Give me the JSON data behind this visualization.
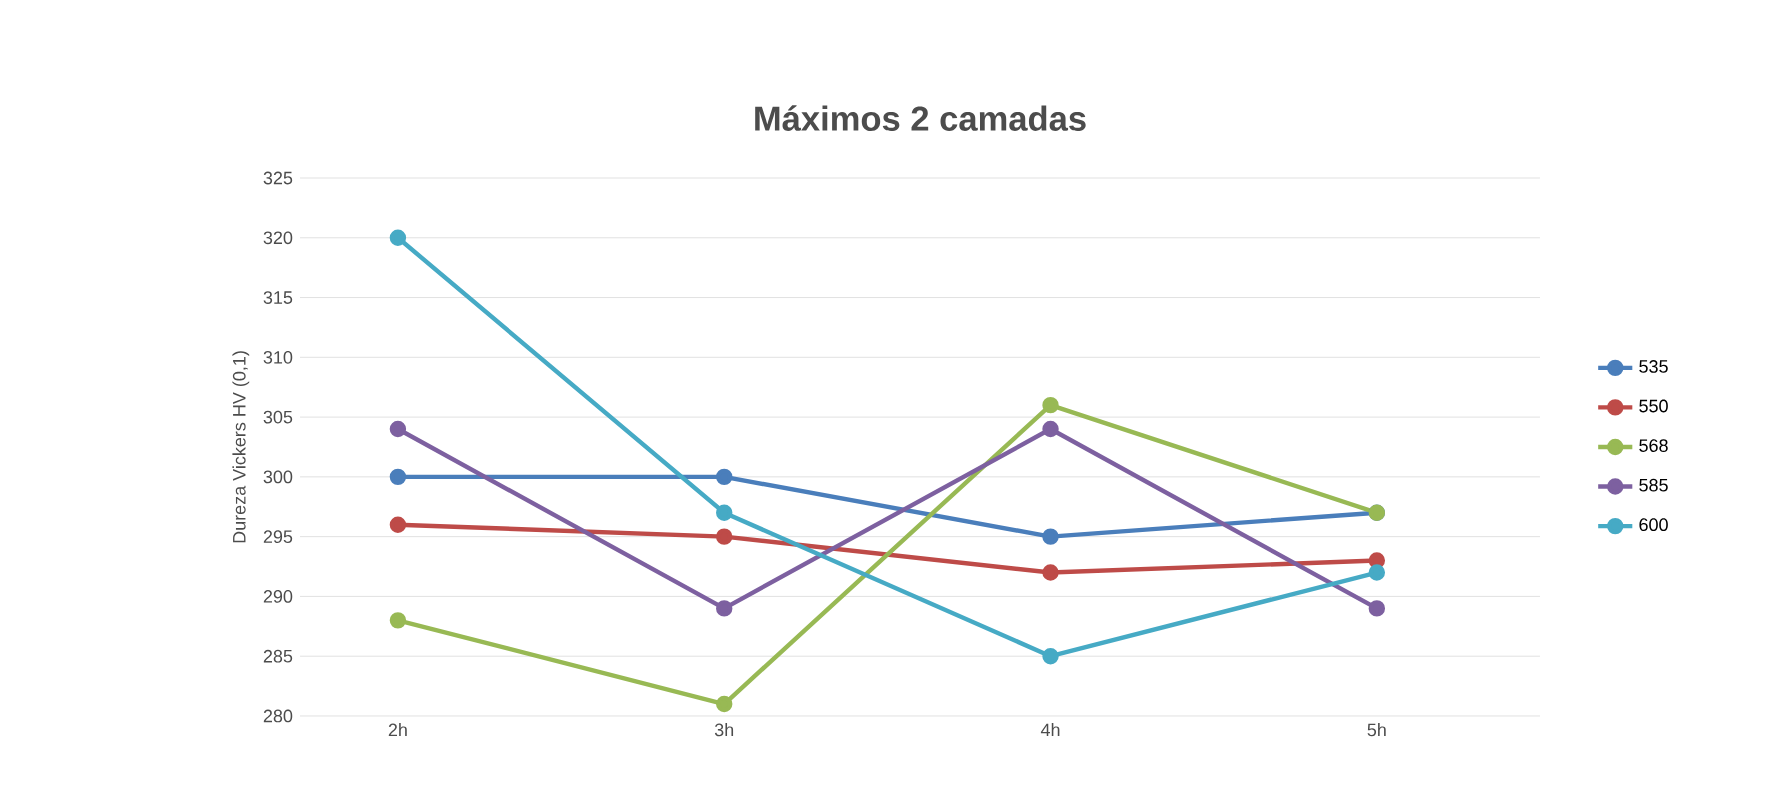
{
  "chart_data": {
    "type": "line",
    "title": "Máximos 2 camadas",
    "ylabel": "Dureza Vickers HV (0,1)",
    "categories": [
      "2h",
      "3h",
      "4h",
      "5h"
    ],
    "series": [
      {
        "name": "535",
        "color": "#4a7ebb",
        "values": [
          300,
          300,
          295,
          297
        ]
      },
      {
        "name": "550",
        "color": "#be4b48",
        "values": [
          296,
          295,
          292,
          293
        ]
      },
      {
        "name": "568",
        "color": "#98b954",
        "values": [
          288,
          281,
          306,
          297
        ]
      },
      {
        "name": "585",
        "color": "#7d60a0",
        "values": [
          304,
          289,
          304,
          289
        ]
      },
      {
        "name": "600",
        "color": "#46aac5",
        "values": [
          320,
          297,
          285,
          292
        ]
      }
    ],
    "ylim": [
      280,
      325
    ],
    "yticks": [
      280,
      285,
      290,
      295,
      300,
      305,
      310,
      315,
      320,
      325
    ],
    "grid": "y",
    "legend": "right",
    "marker": "circle",
    "line_style": "solid"
  }
}
